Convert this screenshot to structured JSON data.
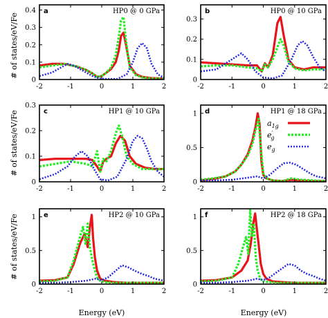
{
  "figure": {
    "ylabel": "# of states/eV/Fe",
    "xlabel": "Energy (eV)"
  },
  "colors": {
    "a1g": "#e8141c",
    "eg_prime": "#22ee22",
    "eg": "#2a2ae0"
  },
  "legend": {
    "entries": [
      "a_1g",
      "e'_g",
      "e_g"
    ],
    "placement": "panel d, top-right"
  },
  "chart_data": [
    {
      "type": "line",
      "panel": "a",
      "title": "HP0 @ 0 GPa",
      "xlabel": "",
      "ylabel": "# of states/eV/Fe",
      "xlim": [
        -2,
        2
      ],
      "ylim": [
        0,
        0.43
      ],
      "xticks": [
        "-2",
        "-1",
        "0",
        "1",
        "2"
      ],
      "yticks": [
        "0",
        "0.1",
        "0.2",
        "0.3",
        "0.4"
      ],
      "series": [
        {
          "name": "a_1g",
          "x": [
            -2.0,
            -1.6,
            -1.2,
            -0.8,
            -0.5,
            -0.3,
            -0.15,
            0.0,
            0.15,
            0.3,
            0.45,
            0.55,
            0.62,
            0.7,
            0.78,
            0.9,
            1.1,
            1.3,
            1.6,
            2.0
          ],
          "y": [
            0.08,
            0.09,
            0.09,
            0.075,
            0.055,
            0.035,
            0.015,
            0.02,
            0.04,
            0.06,
            0.1,
            0.17,
            0.25,
            0.27,
            0.2,
            0.08,
            0.03,
            0.015,
            0.008,
            0.005
          ]
        },
        {
          "name": "e'_g",
          "x": [
            -2.0,
            -1.6,
            -1.2,
            -0.8,
            -0.5,
            -0.3,
            -0.15,
            0.0,
            0.15,
            0.3,
            0.45,
            0.55,
            0.62,
            0.7,
            0.78,
            0.9,
            1.1,
            1.3,
            1.6,
            2.0
          ],
          "y": [
            0.07,
            0.08,
            0.09,
            0.075,
            0.055,
            0.035,
            0.015,
            0.02,
            0.04,
            0.07,
            0.14,
            0.25,
            0.34,
            0.36,
            0.22,
            0.07,
            0.025,
            0.012,
            0.006,
            0.004
          ]
        },
        {
          "name": "e_g",
          "x": [
            -2.0,
            -1.6,
            -1.3,
            -1.1,
            -0.9,
            -0.6,
            -0.3,
            -0.05,
            0.2,
            0.5,
            0.8,
            1.0,
            1.15,
            1.3,
            1.45,
            1.6,
            1.8,
            2.0
          ],
          "y": [
            0.02,
            0.04,
            0.07,
            0.09,
            0.08,
            0.05,
            0.02,
            0.005,
            0.003,
            0.003,
            0.03,
            0.1,
            0.18,
            0.21,
            0.18,
            0.09,
            0.03,
            0.01
          ]
        }
      ]
    },
    {
      "type": "line",
      "panel": "b",
      "title": "HP0 @ 10 GPa",
      "xlabel": "",
      "ylabel": "",
      "xlim": [
        -2,
        2
      ],
      "ylim": [
        0,
        0.37
      ],
      "xticks": [
        "-2",
        "-1",
        "0",
        "1",
        "2"
      ],
      "yticks": [
        "0",
        "0.1",
        "0.2",
        "0.3"
      ],
      "series": [
        {
          "name": "a_1g",
          "x": [
            -2.0,
            -1.5,
            -1.0,
            -0.5,
            -0.2,
            -0.05,
            0.05,
            0.15,
            0.3,
            0.45,
            0.55,
            0.65,
            0.8,
            1.0,
            1.3,
            1.6,
            2.0
          ],
          "y": [
            0.085,
            0.08,
            0.075,
            0.07,
            0.07,
            0.04,
            0.08,
            0.06,
            0.12,
            0.28,
            0.31,
            0.22,
            0.1,
            0.06,
            0.05,
            0.06,
            0.06
          ]
        },
        {
          "name": "e'_g",
          "x": [
            -2.0,
            -1.5,
            -1.0,
            -0.5,
            -0.2,
            -0.05,
            0.05,
            0.15,
            0.3,
            0.45,
            0.55,
            0.65,
            0.8,
            1.0,
            1.3,
            1.6,
            2.0
          ],
          "y": [
            0.065,
            0.07,
            0.07,
            0.06,
            0.055,
            0.04,
            0.075,
            0.06,
            0.1,
            0.16,
            0.2,
            0.17,
            0.09,
            0.055,
            0.045,
            0.05,
            0.05
          ]
        },
        {
          "name": "e_g",
          "x": [
            -2.0,
            -1.5,
            -1.2,
            -0.9,
            -0.7,
            -0.5,
            -0.25,
            0.0,
            0.3,
            0.6,
            0.9,
            1.1,
            1.25,
            1.4,
            1.6,
            1.8,
            2.0
          ],
          "y": [
            0.04,
            0.05,
            0.08,
            0.11,
            0.13,
            0.1,
            0.04,
            0.01,
            0.005,
            0.02,
            0.1,
            0.17,
            0.19,
            0.17,
            0.11,
            0.06,
            0.04
          ]
        }
      ]
    },
    {
      "type": "line",
      "panel": "c",
      "title": "HP1 @ 10 GPa",
      "xlabel": "",
      "ylabel": "# of states/eV/Fe",
      "xlim": [
        -2,
        2
      ],
      "ylim": [
        0,
        0.3
      ],
      "xticks": [
        "-2",
        "-1",
        "0",
        "1",
        "2"
      ],
      "yticks": [
        "0",
        "0.1",
        "0.2",
        "0.3"
      ],
      "series": [
        {
          "name": "a_1g",
          "x": [
            -2.0,
            -1.5,
            -1.0,
            -0.5,
            -0.3,
            -0.15,
            -0.05,
            0.05,
            0.15,
            0.3,
            0.45,
            0.6,
            0.75,
            0.9,
            1.1,
            1.4,
            1.7,
            2.0
          ],
          "y": [
            0.085,
            0.09,
            0.09,
            0.09,
            0.085,
            0.06,
            0.04,
            0.08,
            0.09,
            0.1,
            0.15,
            0.18,
            0.16,
            0.1,
            0.07,
            0.055,
            0.05,
            0.05
          ]
        },
        {
          "name": "e'_g",
          "x": [
            -2.0,
            -1.5,
            -1.0,
            -0.5,
            -0.3,
            -0.15,
            -0.05,
            0.05,
            0.15,
            0.3,
            0.45,
            0.55,
            0.65,
            0.8,
            1.0,
            1.3,
            1.6,
            2.0
          ],
          "y": [
            0.06,
            0.07,
            0.08,
            0.07,
            0.06,
            0.12,
            0.04,
            0.09,
            0.08,
            0.12,
            0.19,
            0.22,
            0.18,
            0.1,
            0.07,
            0.05,
            0.05,
            0.05
          ]
        },
        {
          "name": "e_g",
          "x": [
            -2.0,
            -1.5,
            -1.1,
            -0.85,
            -0.65,
            -0.45,
            -0.25,
            -0.05,
            0.2,
            0.5,
            0.8,
            1.0,
            1.15,
            1.3,
            1.45,
            1.6,
            1.8,
            2.0
          ],
          "y": [
            0.01,
            0.03,
            0.06,
            0.1,
            0.12,
            0.1,
            0.05,
            0.01,
            0.005,
            0.02,
            0.09,
            0.16,
            0.18,
            0.17,
            0.13,
            0.08,
            0.04,
            0.02
          ]
        }
      ]
    },
    {
      "type": "line",
      "panel": "d",
      "title": "HP1 @ 18 GPa",
      "xlabel": "",
      "ylabel": "",
      "xlim": [
        -2,
        2
      ],
      "ylim": [
        0,
        1.12
      ],
      "xticks": [
        "-2",
        "-1",
        "0",
        "1",
        "2"
      ],
      "yticks": [
        "0",
        "0.5",
        "1"
      ],
      "series": [
        {
          "name": "a_1g",
          "x": [
            -2.0,
            -1.6,
            -1.2,
            -0.9,
            -0.7,
            -0.5,
            -0.35,
            -0.25,
            -0.18,
            -0.12,
            -0.06,
            0.0,
            0.1,
            0.3,
            0.6,
            0.9,
            1.2,
            1.6,
            2.0
          ],
          "y": [
            0.02,
            0.04,
            0.08,
            0.15,
            0.25,
            0.4,
            0.6,
            0.8,
            1.0,
            0.85,
            0.3,
            0.1,
            0.05,
            0.02,
            0.01,
            0.03,
            0.02,
            0.01,
            0.01
          ]
        },
        {
          "name": "e'_g",
          "x": [
            -2.0,
            -1.6,
            -1.2,
            -0.9,
            -0.7,
            -0.5,
            -0.35,
            -0.25,
            -0.15,
            -0.08,
            0.0,
            0.1,
            0.3,
            0.6,
            0.9,
            1.2,
            1.6,
            2.0
          ],
          "y": [
            0.03,
            0.05,
            0.08,
            0.15,
            0.25,
            0.38,
            0.55,
            0.75,
            0.92,
            0.5,
            0.12,
            0.05,
            0.02,
            0.01,
            0.05,
            0.03,
            0.02,
            0.01
          ]
        },
        {
          "name": "e_g",
          "x": [
            -2.0,
            -1.5,
            -1.0,
            -0.5,
            -0.2,
            0.0,
            0.2,
            0.45,
            0.65,
            0.85,
            1.05,
            1.3,
            1.5,
            1.7,
            2.0
          ],
          "y": [
            0.02,
            0.02,
            0.03,
            0.06,
            0.08,
            0.05,
            0.1,
            0.2,
            0.27,
            0.28,
            0.25,
            0.18,
            0.12,
            0.08,
            0.05
          ]
        }
      ]
    },
    {
      "type": "line",
      "panel": "e",
      "title": "HP2 @ 10 GPa",
      "xlabel": "Energy (eV)",
      "ylabel": "# of states/eV/Fe",
      "xlim": [
        -2,
        2
      ],
      "ylim": [
        0,
        1.12
      ],
      "xticks": [
        "-2",
        "-1",
        "0",
        "1",
        "2"
      ],
      "yticks": [
        "0",
        "0.5",
        "1"
      ],
      "series": [
        {
          "name": "a_1g",
          "x": [
            -2.0,
            -1.5,
            -1.1,
            -0.9,
            -0.7,
            -0.55,
            -0.45,
            -0.38,
            -0.32,
            -0.28,
            -0.22,
            -0.15,
            -0.05,
            0.1,
            0.4,
            0.8,
            1.2,
            1.6,
            2.0
          ],
          "y": [
            0.05,
            0.06,
            0.1,
            0.3,
            0.6,
            0.75,
            0.55,
            0.85,
            1.03,
            0.7,
            0.4,
            0.2,
            0.08,
            0.05,
            0.03,
            0.02,
            0.02,
            0.02,
            0.02
          ]
        },
        {
          "name": "e'_g",
          "x": [
            -2.0,
            -1.5,
            -1.1,
            -0.9,
            -0.7,
            -0.6,
            -0.52,
            -0.45,
            -0.38,
            -0.3,
            -0.22,
            -0.15,
            -0.05,
            0.1,
            0.4,
            0.8,
            1.2,
            1.6,
            2.0
          ],
          "y": [
            0.04,
            0.05,
            0.1,
            0.35,
            0.7,
            0.85,
            0.6,
            0.9,
            0.55,
            0.35,
            0.2,
            0.1,
            0.05,
            0.03,
            0.02,
            0.02,
            0.02,
            0.02,
            0.02
          ]
        },
        {
          "name": "e_g",
          "x": [
            -2.0,
            -1.5,
            -1.0,
            -0.5,
            -0.2,
            0.0,
            0.2,
            0.45,
            0.65,
            0.85,
            1.05,
            1.3,
            1.5,
            1.7,
            2.0
          ],
          "y": [
            0.02,
            0.02,
            0.03,
            0.05,
            0.08,
            0.06,
            0.1,
            0.2,
            0.28,
            0.25,
            0.2,
            0.15,
            0.12,
            0.08,
            0.05
          ]
        }
      ]
    },
    {
      "type": "line",
      "panel": "f",
      "title": "HP2 @ 18 GPa",
      "xlabel": "Energy (eV)",
      "ylabel": "",
      "xlim": [
        -2,
        2
      ],
      "ylim": [
        0,
        1.12
      ],
      "xticks": [
        "-2",
        "-1",
        "0",
        "1",
        "2"
      ],
      "yticks": [
        "0",
        "0.5",
        "1"
      ],
      "series": [
        {
          "name": "a_1g",
          "x": [
            -2.0,
            -1.5,
            -1.0,
            -0.7,
            -0.5,
            -0.4,
            -0.32,
            -0.26,
            -0.2,
            -0.14,
            -0.08,
            0.0,
            0.1,
            0.3,
            0.6,
            1.0,
            1.4,
            2.0
          ],
          "y": [
            0.05,
            0.06,
            0.1,
            0.2,
            0.35,
            0.6,
            0.9,
            1.05,
            0.8,
            0.55,
            0.3,
            0.15,
            0.08,
            0.04,
            0.03,
            0.02,
            0.02,
            0.02
          ]
        },
        {
          "name": "e'_g",
          "x": [
            -2.0,
            -1.5,
            -1.0,
            -0.8,
            -0.65,
            -0.55,
            -0.48,
            -0.42,
            -0.36,
            -0.3,
            -0.24,
            -0.18,
            -0.1,
            0.0,
            0.2,
            0.5,
            1.0,
            1.5,
            2.0
          ],
          "y": [
            0.04,
            0.05,
            0.1,
            0.3,
            0.55,
            0.7,
            0.45,
            1.1,
            0.7,
            0.9,
            0.4,
            0.2,
            0.08,
            0.04,
            0.03,
            0.02,
            0.02,
            0.02,
            0.02
          ]
        },
        {
          "name": "e_g",
          "x": [
            -2.0,
            -1.5,
            -1.0,
            -0.5,
            -0.2,
            0.0,
            0.2,
            0.5,
            0.8,
            1.0,
            1.2,
            1.4,
            1.6,
            1.8,
            2.0
          ],
          "y": [
            0.02,
            0.02,
            0.03,
            0.05,
            0.08,
            0.06,
            0.1,
            0.2,
            0.3,
            0.28,
            0.2,
            0.15,
            0.12,
            0.08,
            0.05
          ]
        }
      ]
    }
  ]
}
